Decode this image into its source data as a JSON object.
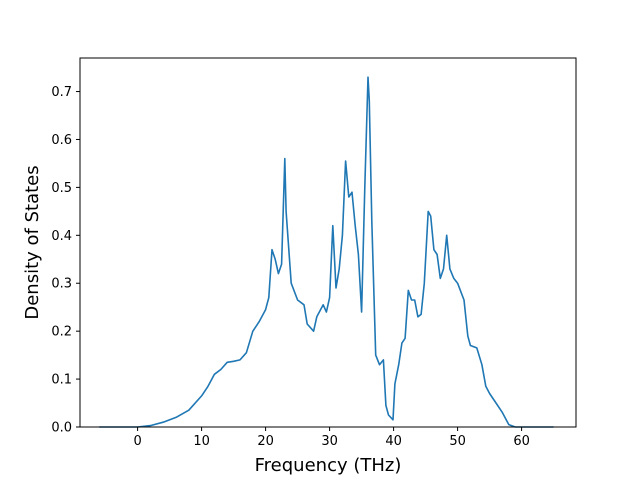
{
  "chart_data": {
    "type": "line",
    "title": "",
    "xlabel": "Frequency (THz)",
    "ylabel": "Density of States",
    "xlim": [
      -9,
      68.5
    ],
    "ylim": [
      0,
      0.77
    ],
    "xticks": [
      0,
      10,
      20,
      30,
      40,
      50,
      60
    ],
    "yticks": [
      0.0,
      0.1,
      0.2,
      0.3,
      0.4,
      0.5,
      0.6,
      0.7
    ],
    "grid": false,
    "legend": "none",
    "series": [
      {
        "color": "#1f77b4",
        "x": [
          -6,
          0,
          2,
          4,
          6,
          8,
          10,
          11,
          12,
          13,
          14,
          15,
          16,
          17,
          18,
          19,
          20,
          20.5,
          21,
          21.5,
          22,
          22.5,
          23,
          23.2,
          24,
          25,
          26,
          26.5,
          27.5,
          28,
          29,
          29.5,
          30,
          30.5,
          31,
          31.5,
          32,
          32.5,
          33,
          33.5,
          34,
          34.5,
          35,
          35.5,
          36,
          36.2,
          36.6,
          37.2,
          37.8,
          38.4,
          38.8,
          39.2,
          39.9,
          40.2,
          40.8,
          41.3,
          41.8,
          42.3,
          42.8,
          43.3,
          43.8,
          44.3,
          44.8,
          45.4,
          45.8,
          46.3,
          46.8,
          47.3,
          47.8,
          48.3,
          48.8,
          49.4,
          50,
          51,
          51.6,
          52,
          53,
          53.8,
          54.4,
          55,
          56,
          57,
          58,
          59,
          60,
          65
        ],
        "values": [
          0,
          0,
          0.003,
          0.01,
          0.02,
          0.035,
          0.065,
          0.085,
          0.11,
          0.12,
          0.135,
          0.137,
          0.14,
          0.155,
          0.2,
          0.22,
          0.245,
          0.27,
          0.37,
          0.35,
          0.32,
          0.34,
          0.56,
          0.45,
          0.3,
          0.265,
          0.255,
          0.215,
          0.2,
          0.23,
          0.255,
          0.24,
          0.27,
          0.42,
          0.29,
          0.33,
          0.4,
          0.555,
          0.48,
          0.49,
          0.42,
          0.36,
          0.24,
          0.5,
          0.73,
          0.68,
          0.43,
          0.15,
          0.13,
          0.14,
          0.045,
          0.025,
          0.015,
          0.09,
          0.13,
          0.175,
          0.185,
          0.285,
          0.265,
          0.265,
          0.23,
          0.235,
          0.3,
          0.45,
          0.44,
          0.37,
          0.36,
          0.31,
          0.33,
          0.4,
          0.33,
          0.31,
          0.3,
          0.265,
          0.19,
          0.17,
          0.165,
          0.13,
          0.085,
          0.07,
          0.05,
          0.03,
          0.005,
          0,
          0,
          0
        ]
      }
    ]
  }
}
